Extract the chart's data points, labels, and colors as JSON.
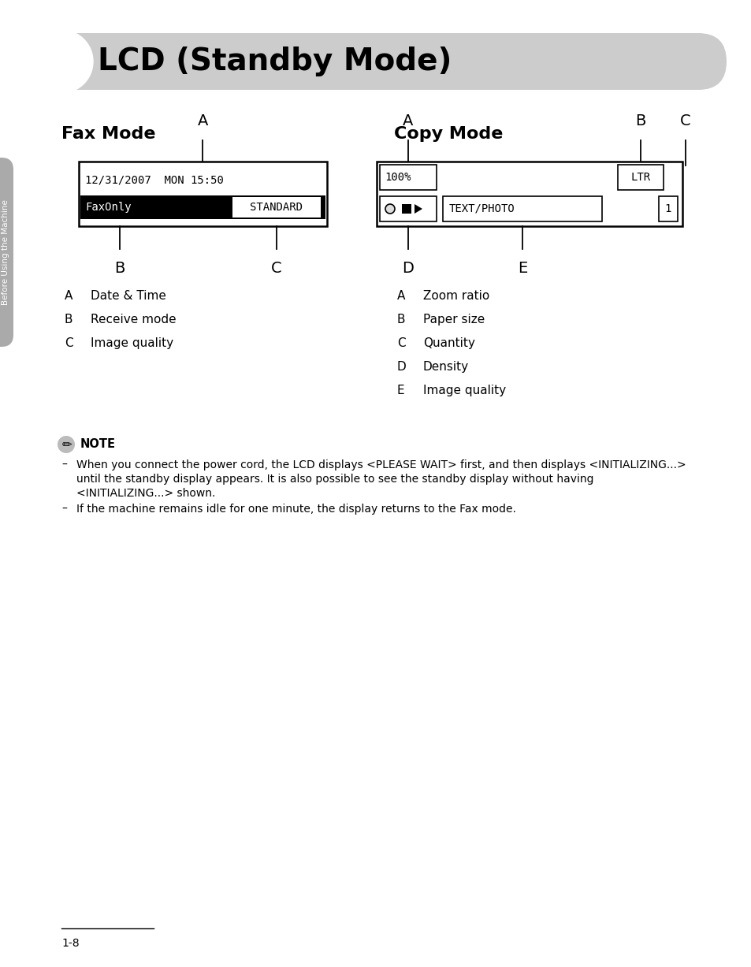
{
  "title": "LCD (Standby Mode)",
  "fax_mode_title": "Fax Mode",
  "copy_mode_title": "Copy Mode",
  "fax_line1": "12/31/2007  MON 15:50",
  "fax_line2_left": "FaxOnly",
  "fax_line2_right": "STANDARD",
  "copy_line1_left": "100%",
  "copy_line1_right": "LTR",
  "copy_line2_mid": "TEXT/PHOTO",
  "copy_line2_right": "1",
  "fax_labels": [
    {
      "letter": "A",
      "description": "Date & Time"
    },
    {
      "letter": "B",
      "description": "Receive mode"
    },
    {
      "letter": "C",
      "description": "Image quality"
    }
  ],
  "copy_labels": [
    {
      "letter": "A",
      "description": "Zoom ratio"
    },
    {
      "letter": "B",
      "description": "Paper size"
    },
    {
      "letter": "C",
      "description": "Quantity"
    },
    {
      "letter": "D",
      "description": "Density"
    },
    {
      "letter": "E",
      "description": "Image quality"
    }
  ],
  "note_title": "NOTE",
  "note_line1a": "When you connect the power cord, the LCD displays <PLEASE WAIT> first, and then displays <INITIALIZING...>",
  "note_line1b": "until the standby display appears. It is also possible to see the standby display without having",
  "note_line1c": "<INITIALIZING...> shown.",
  "note_line2": "If the machine remains idle for one minute, the display returns to the Fax mode.",
  "page_number": "1-8",
  "sidebar_text": "Before Using the Machine",
  "bg_color": "#ffffff",
  "header_bg": "#cccccc",
  "text_color": "#000000",
  "lcd_bg": "#ffffff",
  "lcd_border": "#000000",
  "sidebar_color": "#aaaaaa"
}
